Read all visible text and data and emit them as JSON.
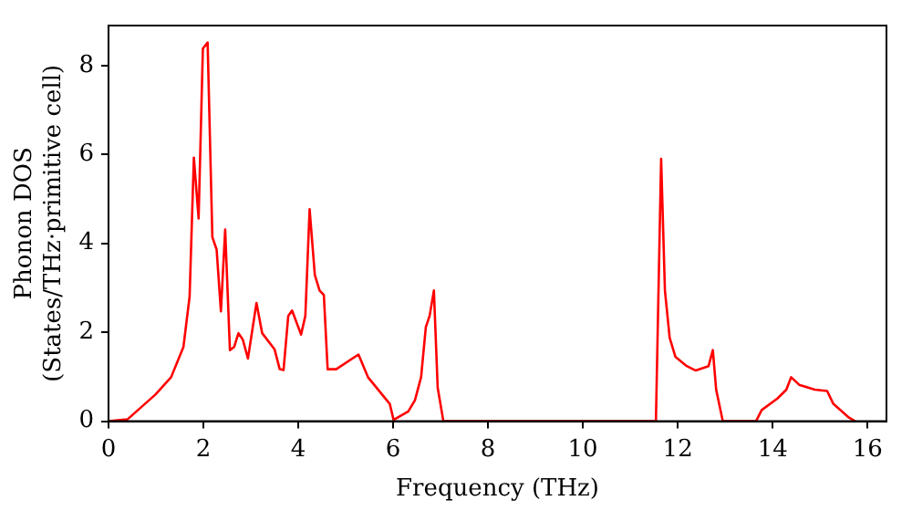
{
  "chart_data": {
    "type": "line",
    "xlabel": "Frequency (THz)",
    "ylabel": "Phonon DOS\n(States/THz·primitive cell)",
    "xlim": [
      0,
      16.4
    ],
    "ylim": [
      0,
      8.9
    ],
    "xticks": [
      0,
      2,
      4,
      6,
      8,
      10,
      12,
      14,
      16
    ],
    "yticks": [
      0,
      2,
      4,
      6,
      8
    ],
    "grid": false,
    "legend": false,
    "marker": "none",
    "line_style": "solid",
    "series": [
      {
        "color": "#ff0000",
        "x": [
          0,
          0.4,
          0.99,
          1.32,
          1.58,
          1.71,
          1.8,
          1.9,
          1.99,
          2.09,
          2.19,
          2.28,
          2.37,
          2.46,
          2.56,
          2.65,
          2.74,
          2.83,
          2.94,
          3.12,
          3.24,
          3.5,
          3.61,
          3.69,
          3.79,
          3.87,
          4.06,
          4.15,
          4.24,
          4.35,
          4.45,
          4.54,
          4.62,
          4.8,
          5.27,
          5.47,
          5.8,
          5.93,
          6.01,
          6.32,
          6.46,
          6.59,
          6.69,
          6.77,
          6.86,
          6.94,
          7.06,
          11.54,
          11.65,
          11.73,
          11.83,
          11.95,
          12.19,
          12.38,
          12.65,
          12.74,
          12.81,
          12.95,
          13.65,
          13.77,
          14.1,
          14.29,
          14.39,
          14.56,
          14.89,
          15.15,
          15.28,
          15.61,
          15.74
        ],
        "values": [
          0,
          0.04,
          0.6,
          0.99,
          1.67,
          2.8,
          5.93,
          4.56,
          8.38,
          8.52,
          4.14,
          3.86,
          2.47,
          4.31,
          1.6,
          1.67,
          1.98,
          1.84,
          1.41,
          2.66,
          1.98,
          1.62,
          1.17,
          1.15,
          2.37,
          2.49,
          1.95,
          2.37,
          4.77,
          3.29,
          2.94,
          2.84,
          1.17,
          1.17,
          1.5,
          0.99,
          0.56,
          0.39,
          0.03,
          0.22,
          0.47,
          0.99,
          2.12,
          2.37,
          2.94,
          0.75,
          0,
          0,
          5.9,
          2.94,
          1.88,
          1.45,
          1.24,
          1.14,
          1.24,
          1.6,
          0.71,
          0,
          0,
          0.25,
          0.51,
          0.71,
          0.99,
          0.82,
          0.71,
          0.68,
          0.39,
          0.08,
          0
        ]
      }
    ]
  }
}
